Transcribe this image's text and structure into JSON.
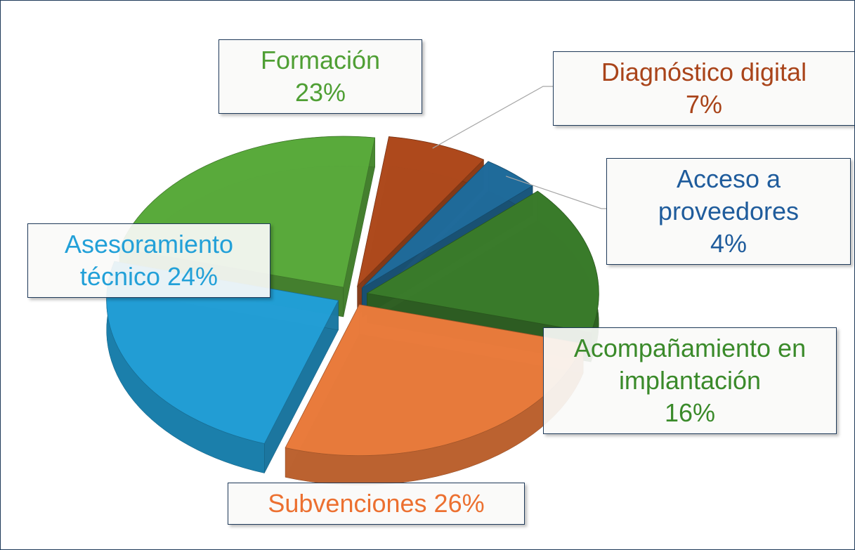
{
  "chart_data": {
    "type": "pie",
    "categories": [
      "Formación",
      "Diagnóstico digital",
      "Acceso a proveedores",
      "Acompañamiento en implantación",
      "Subvenciones",
      "Asesoramiento técnico"
    ],
    "values": [
      23,
      7,
      4,
      16,
      26,
      24
    ],
    "value_labels": [
      "23%",
      "7%",
      "4%",
      "16%",
      "26%",
      "24%"
    ],
    "colors": [
      "#5aac3c",
      "#b04a1c",
      "#1f6c9c",
      "#3a7c2a",
      "#ec7c3c",
      "#22a0d8"
    ]
  }
}
